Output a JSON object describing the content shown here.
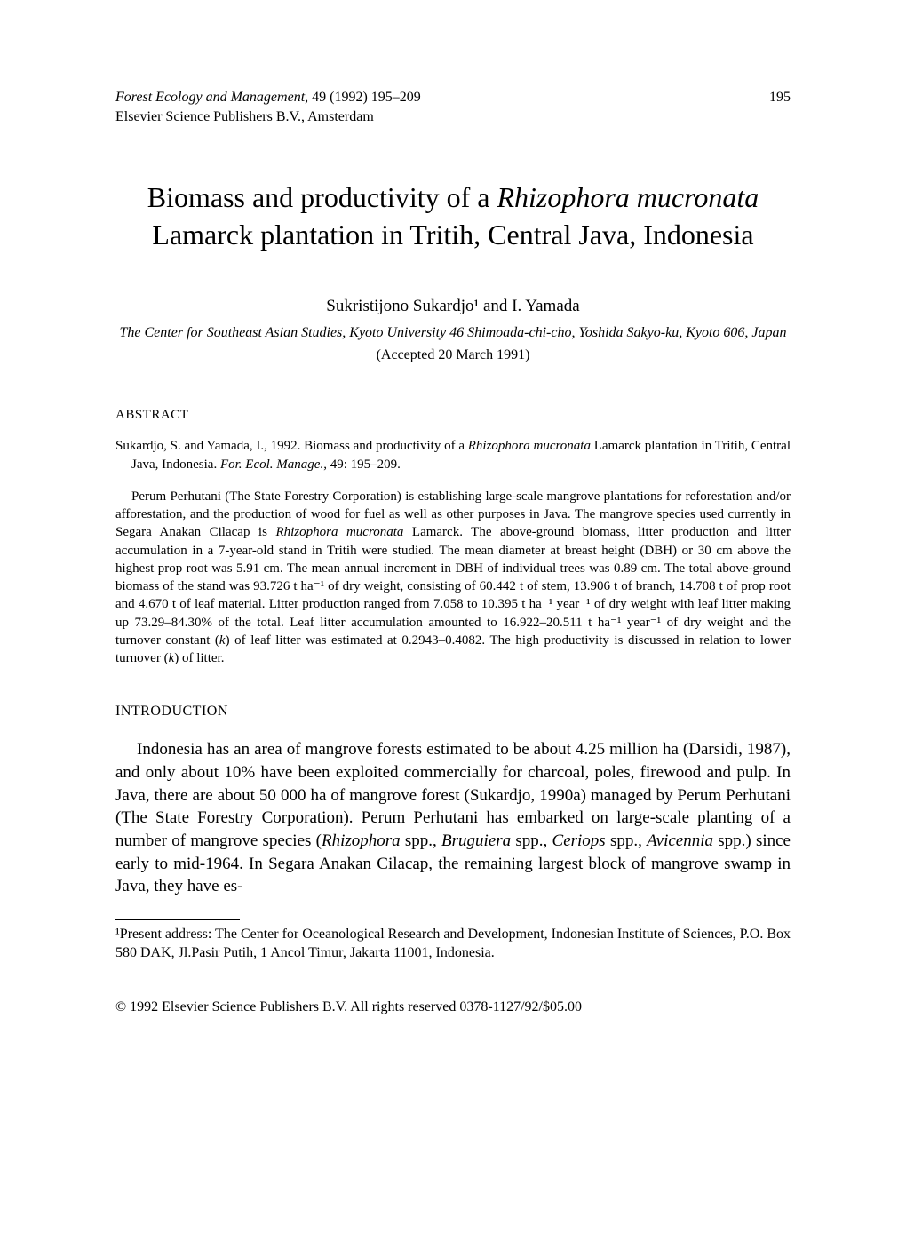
{
  "header": {
    "journal": "Forest Ecology and Management",
    "volume_issue": ", 49 (1992) 195–209",
    "page_number": "195",
    "publisher": "Elsevier Science Publishers B.V., Amsterdam"
  },
  "title": {
    "line1": "Biomass and productivity of a ",
    "species": "Rhizophora mucronata",
    "line2": " Lamarck plantation in Tritih, Central Java, Indonesia"
  },
  "authors": "Sukristijono Sukardjo¹ and I. Yamada",
  "affiliation": "The Center for Southeast Asian Studies, Kyoto University 46 Shimoada-chi-cho, Yoshida Sakyo-ku, Kyoto 606, Japan",
  "accepted": "(Accepted 20 March 1991)",
  "abstract_heading": "ABSTRACT",
  "citation": {
    "authors": "Sukardjo, S. and Yamada, I., 1992. Biomass and productivity of a ",
    "species": "Rhizophora mucronata",
    "rest": " Lamarck plantation in Tritih, Central Java, Indonesia. ",
    "journal_abbrev": "For. Ecol. Manage.",
    "pages": ", 49: 195–209."
  },
  "abstract_body": {
    "p1a": "Perum Perhutani (The State Forestry Corporation) is establishing large-scale mangrove plantations for reforestation and/or afforestation, and the production of wood for fuel as well as other purposes in Java. The mangrove species used currently in Segara Anakan Cilacap is ",
    "sp1": "Rhizophora mucronata",
    "p1b": " Lamarck. The above-ground biomass, litter production and litter accumulation in a 7-year-old stand in Tritih were studied. The mean diameter at breast height (DBH) or 30 cm above the highest prop root was 5.91 cm. The mean annual increment in DBH of individual trees was 0.89 cm. The total above-ground biomass of the stand was 93.726 t ha⁻¹ of dry weight, consisting of 60.442 t of stem, 13.906 t of branch, 14.708 t of prop root and 4.670 t of leaf material. Litter production ranged from 7.058 to 10.395 t ha⁻¹ year⁻¹ of dry weight with leaf litter making up 73.29–84.30% of the total. Leaf litter accumulation amounted to 16.922–20.511 t ha⁻¹ year⁻¹ of dry weight and the turnover constant (",
    "k1": "k",
    "p1c": ") of leaf litter was estimated at 0.2943–0.4082. The high productivity is discussed in relation to lower turnover (",
    "k2": "k",
    "p1d": ") of litter."
  },
  "intro_heading": "INTRODUCTION",
  "intro_body": {
    "p1a": "Indonesia has an area of mangrove forests estimated to be about 4.25 million ha (Darsidi, 1987), and only about 10% have been exploited commercially for charcoal, poles, firewood and pulp. In Java, there are about 50 000 ha of mangrove forest (Sukardjo, 1990a) managed by Perum Perhutani (The State Forestry Corporation). Perum Perhutani has embarked on large-scale planting of a number of mangrove species (",
    "sp1": "Rhizophora",
    "p1b": " spp., ",
    "sp2": "Bruguiera",
    "p1c": " spp., ",
    "sp3": "Ceriops",
    "p1d": " spp., ",
    "sp4": "Avicennia",
    "p1e": " spp.) since early to mid-1964. In Segara Anakan Cilacap, the remaining largest block of mangrove swamp in Java, they have es-"
  },
  "footnote": "¹Present address: The Center for Oceanological Research and Development, Indonesian Institute of Sciences, P.O. Box 580 DAK, Jl.Pasir Putih, 1 Ancol Timur, Jakarta 11001, Indonesia.",
  "copyright": "© 1992 Elsevier Science Publishers B.V. All rights reserved 0378-1127/92/$05.00"
}
